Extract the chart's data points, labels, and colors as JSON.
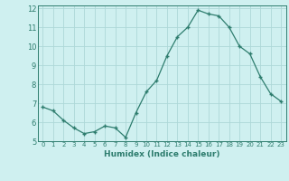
{
  "x": [
    0,
    1,
    2,
    3,
    4,
    5,
    6,
    7,
    8,
    9,
    10,
    11,
    12,
    13,
    14,
    15,
    16,
    17,
    18,
    19,
    20,
    21,
    22,
    23
  ],
  "y": [
    6.8,
    6.6,
    6.1,
    5.7,
    5.4,
    5.5,
    5.8,
    5.7,
    5.2,
    6.5,
    7.6,
    8.2,
    9.5,
    10.5,
    11.0,
    11.9,
    11.7,
    11.6,
    11.0,
    10.0,
    9.6,
    8.4,
    7.5,
    7.1
  ],
  "xlabel": "Humidex (Indice chaleur)",
  "ylim": [
    5,
    12
  ],
  "xlim": [
    -0.5,
    23.5
  ],
  "yticks": [
    5,
    6,
    7,
    8,
    9,
    10,
    11,
    12
  ],
  "xticks": [
    0,
    1,
    2,
    3,
    4,
    5,
    6,
    7,
    8,
    9,
    10,
    11,
    12,
    13,
    14,
    15,
    16,
    17,
    18,
    19,
    20,
    21,
    22,
    23
  ],
  "line_color": "#2e7d6e",
  "marker": "+",
  "marker_size": 3.5,
  "bg_color": "#cff0f0",
  "grid_color": "#add8d8",
  "title_color": "#2e7d6e"
}
